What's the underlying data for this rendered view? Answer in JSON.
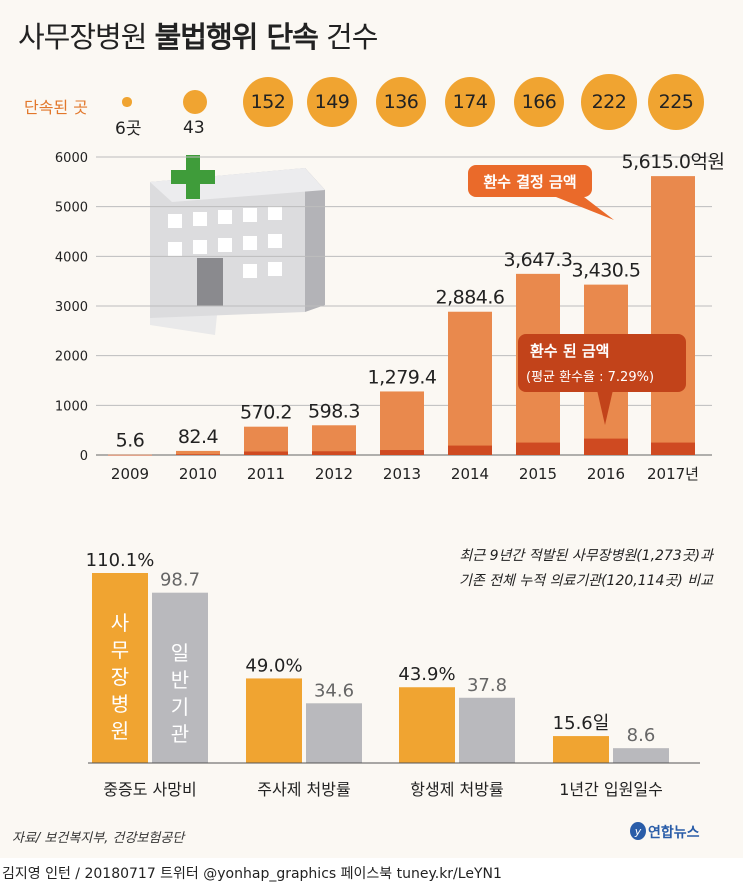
{
  "title": {
    "light": "사무장병원",
    "bold": "불법행위 단속",
    "tail": "건수"
  },
  "counts_label": "단속된 곳",
  "counts": [
    {
      "year": "2009",
      "text": "",
      "caption": "6곳",
      "value": 6
    },
    {
      "year": "2010",
      "text": "",
      "caption": "43",
      "value": 43
    },
    {
      "year": "2011",
      "text": "152",
      "caption": "",
      "value": 152
    },
    {
      "year": "2012",
      "text": "149",
      "caption": "",
      "value": 149
    },
    {
      "year": "2013",
      "text": "136",
      "caption": "",
      "value": 136
    },
    {
      "year": "2014",
      "text": "174",
      "caption": "",
      "value": 174
    },
    {
      "year": "2015",
      "text": "166",
      "caption": "",
      "value": 166
    },
    {
      "year": "2016",
      "text": "222",
      "caption": "",
      "value": 222
    },
    {
      "year": "2017",
      "text": "225",
      "caption": "",
      "value": 225
    }
  ],
  "callouts": {
    "refund_decided": "환수 결정 금액",
    "refunded": "환수 된 금액",
    "refunded_rate": "(평균 환수율 : 7.29%)"
  },
  "note": {
    "line1": "최근 9년간 적발된 사무장병원(1,273곳)과",
    "line2": "기존 전체 누적 의료기관(120,114곳) 비교"
  },
  "source": "자료/ 보건복지부, 건강보험공단",
  "logo": "연합뉴스",
  "credit": "김지영 인턴 / 20180717 트위터 @yonhap_graphics  페이스북 tuney.kr/LeYN1",
  "colors": {
    "orange": "#f0a431",
    "bar_main": "#e9894d",
    "bar_dark": "#cf4a21",
    "gray": "#b9b9bd",
    "text_orange": "#e2772b"
  },
  "chart_data": [
    {
      "type": "bar",
      "categories": [
        "2009",
        "2010",
        "2011",
        "2012",
        "2013",
        "2014",
        "2015",
        "2016",
        "2017년"
      ],
      "series": [
        {
          "name": "환수 결정 금액",
          "values": [
            5.6,
            82.4,
            570.2,
            598.3,
            1279.4,
            2884.6,
            3647.3,
            3430.5,
            5615.0
          ]
        },
        {
          "name": "환수 된 금액",
          "values": [
            1,
            15,
            70,
            75,
            100,
            190,
            250,
            330,
            250
          ]
        }
      ],
      "value_labels": [
        "5.6",
        "82.4",
        "570.2",
        "598.3",
        "1,279.4",
        "2,884.6",
        "3,647.3",
        "3,430.5",
        "5,615.0억원"
      ],
      "yticks": [
        0,
        1000,
        2000,
        3000,
        4000,
        5000,
        6000
      ],
      "ylim": [
        0,
        6000
      ],
      "grid": true
    },
    {
      "type": "bar",
      "categories": [
        "중증도 사망비",
        "주사제 처방률",
        "항생제 처방률",
        "1년간 입원일수"
      ],
      "series": [
        {
          "name": "사무장병원",
          "values": [
            110.1,
            49.0,
            43.9,
            15.6
          ],
          "labels": [
            "110.1%",
            "49.0%",
            "43.9%",
            "15.6일"
          ]
        },
        {
          "name": "일반기관",
          "values": [
            98.7,
            34.6,
            37.8,
            8.6
          ],
          "labels": [
            "98.7",
            "34.6",
            "37.8",
            "8.6"
          ]
        }
      ]
    }
  ]
}
